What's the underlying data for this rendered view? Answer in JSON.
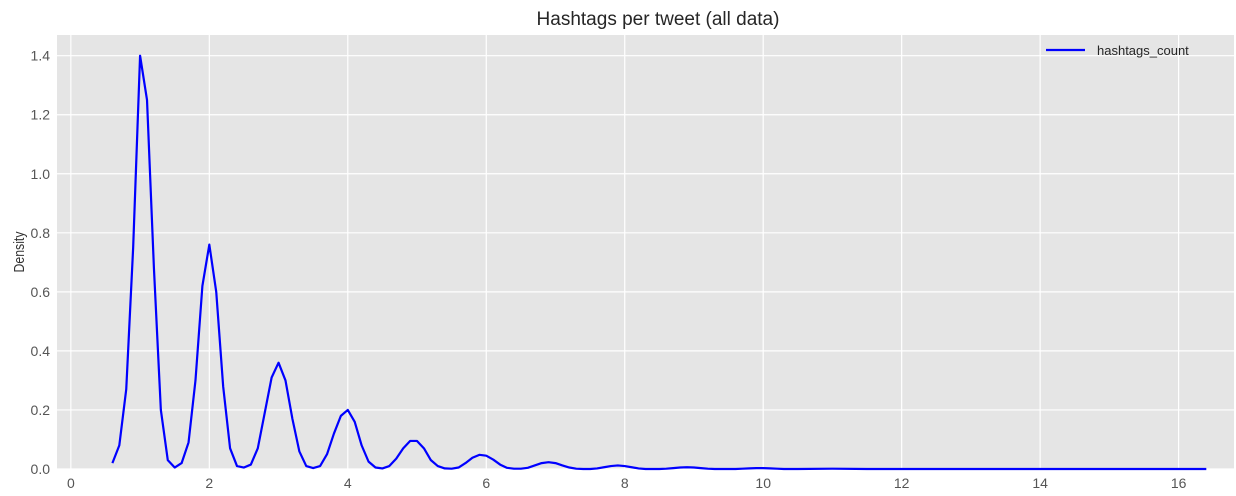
{
  "chart_data": {
    "type": "line",
    "title": "Hashtags per tweet (all data)",
    "xlabel": "",
    "ylabel": "Density",
    "xlim": [
      -0.2,
      16.8
    ],
    "ylim": [
      0,
      1.47
    ],
    "x_ticks": [
      0,
      2,
      4,
      6,
      8,
      10,
      12,
      14,
      16
    ],
    "y_ticks": [
      0.0,
      0.2,
      0.4,
      0.6,
      0.8,
      1.0,
      1.2,
      1.4
    ],
    "x_tick_labels": [
      "0",
      "2",
      "4",
      "6",
      "8",
      "10",
      "12",
      "14",
      "16"
    ],
    "y_tick_labels": [
      "0.0",
      "0.2",
      "0.4",
      "0.6",
      "0.8",
      "1.0",
      "1.2",
      "1.4"
    ],
    "grid": true,
    "legend_position": "top-right",
    "colors": {
      "plot_background": "#e5e5e5",
      "grid": "#ffffff",
      "series": "#0000ff"
    },
    "series": [
      {
        "name": "hashtags_count",
        "x": [
          0.6,
          0.7,
          0.8,
          0.9,
          1.0,
          1.1,
          1.2,
          1.3,
          1.4,
          1.5,
          1.6,
          1.7,
          1.8,
          1.9,
          2.0,
          2.1,
          2.2,
          2.3,
          2.4,
          2.5,
          2.6,
          2.7,
          2.8,
          2.9,
          3.0,
          3.1,
          3.2,
          3.3,
          3.4,
          3.5,
          3.6,
          3.7,
          3.8,
          3.9,
          4.0,
          4.1,
          4.2,
          4.3,
          4.4,
          4.5,
          4.6,
          4.7,
          4.8,
          4.9,
          5.0,
          5.1,
          5.2,
          5.3,
          5.4,
          5.5,
          5.6,
          5.7,
          5.8,
          5.9,
          6.0,
          6.1,
          6.2,
          6.3,
          6.4,
          6.5,
          6.6,
          6.7,
          6.8,
          6.9,
          7.0,
          7.1,
          7.2,
          7.3,
          7.4,
          7.5,
          7.6,
          7.7,
          7.8,
          7.9,
          8.0,
          8.1,
          8.2,
          8.3,
          8.4,
          8.5,
          8.6,
          8.7,
          8.8,
          8.9,
          9.0,
          9.1,
          9.2,
          9.3,
          9.4,
          9.5,
          9.6,
          9.7,
          9.8,
          9.9,
          10.0,
          10.1,
          10.2,
          10.3,
          10.4,
          10.5,
          11.0,
          11.5,
          12.0,
          12.5,
          13.0,
          13.5,
          14.0,
          14.5,
          15.0,
          15.5,
          16.0,
          16.4
        ],
        "y": [
          0.02,
          0.08,
          0.27,
          0.75,
          1.4,
          1.25,
          0.68,
          0.2,
          0.03,
          0.005,
          0.02,
          0.09,
          0.3,
          0.62,
          0.76,
          0.6,
          0.28,
          0.07,
          0.01,
          0.005,
          0.015,
          0.07,
          0.19,
          0.31,
          0.36,
          0.3,
          0.17,
          0.06,
          0.01,
          0.003,
          0.01,
          0.05,
          0.12,
          0.18,
          0.2,
          0.16,
          0.08,
          0.025,
          0.005,
          0.002,
          0.01,
          0.035,
          0.07,
          0.095,
          0.095,
          0.07,
          0.03,
          0.01,
          0.002,
          0.001,
          0.005,
          0.02,
          0.038,
          0.048,
          0.045,
          0.032,
          0.015,
          0.004,
          0.001,
          0.001,
          0.004,
          0.012,
          0.02,
          0.023,
          0.02,
          0.012,
          0.005,
          0.001,
          0.0,
          0.0,
          0.002,
          0.006,
          0.01,
          0.012,
          0.01,
          0.006,
          0.002,
          0.0,
          0.0,
          0.0,
          0.001,
          0.003,
          0.005,
          0.006,
          0.005,
          0.003,
          0.001,
          0.0,
          0.0,
          0.0,
          0.0,
          0.001,
          0.002,
          0.003,
          0.003,
          0.002,
          0.001,
          0.0,
          0.0,
          0.0,
          0.001,
          0.0,
          0.0,
          0.0,
          0.0,
          0.0,
          0.0,
          0.0,
          0.0,
          0.0,
          0.0,
          0.0
        ]
      }
    ]
  }
}
